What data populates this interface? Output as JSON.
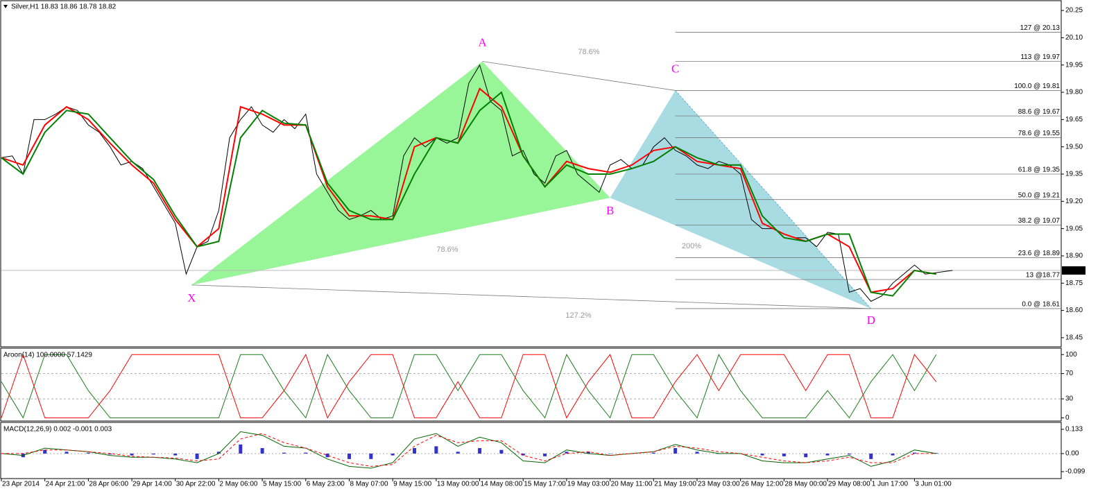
{
  "chart_data": [
    {
      "type": "line",
      "title": "Silver,H1 18.83 18.86 18.78 18.82",
      "xlim": [
        0,
        390
      ],
      "ylim": [
        18.4,
        20.3
      ],
      "yticks": [
        {
          "value": 20.25,
          "label": "20.25"
        },
        {
          "value": 20.1,
          "label": "20.10"
        },
        19.95,
        {
          "value": 19.8,
          "label": "19.80"
        },
        19.65,
        {
          "value": 19.5,
          "label": "19.50"
        },
        19.35,
        {
          "value": 19.2,
          "label": "19.20"
        },
        19.05,
        {
          "value": 18.9,
          "label": "18.90"
        },
        18.75,
        {
          "value": 18.6,
          "label": "18.60"
        },
        18.45
      ],
      "last_price": {
        "value": 18.82,
        "label": "18.82"
      },
      "series": [
        {
          "color": "#000000",
          "x": [
            0,
            4,
            8,
            12,
            16,
            20,
            24,
            28,
            32,
            36,
            40,
            44,
            48,
            52,
            56,
            60,
            64,
            68,
            72,
            76,
            80,
            84,
            88,
            92,
            96,
            100,
            104,
            108,
            112,
            116,
            120,
            124,
            128,
            132,
            136,
            140,
            144,
            148,
            152,
            156,
            160,
            164,
            168,
            172,
            176,
            180,
            184,
            188,
            192,
            196,
            200,
            204,
            208,
            212,
            216,
            220,
            224,
            228,
            232,
            236,
            240,
            244,
            248,
            252,
            256,
            260,
            264,
            268,
            272,
            276,
            280,
            284,
            288,
            292,
            296,
            300,
            304,
            308,
            312,
            316,
            320,
            324,
            328,
            332,
            336,
            340,
            350
          ],
          "values": [
            19.44,
            19.45,
            19.35,
            19.65,
            19.65,
            19.68,
            19.72,
            19.7,
            19.62,
            19.58,
            19.5,
            19.4,
            19.42,
            19.38,
            19.28,
            19.18,
            19.08,
            18.8,
            18.95,
            18.98,
            19.15,
            19.55,
            19.65,
            19.72,
            19.62,
            19.58,
            19.65,
            19.6,
            19.68,
            19.35,
            19.25,
            19.15,
            19.1,
            19.12,
            19.15,
            19.1,
            19.12,
            19.45,
            19.55,
            19.5,
            19.55,
            19.52,
            19.55,
            19.85,
            19.95,
            19.75,
            19.7,
            19.45,
            19.48,
            19.35,
            19.3,
            19.45,
            19.48,
            19.35,
            19.3,
            19.25,
            19.4,
            19.43,
            19.38,
            19.4,
            19.5,
            19.55,
            19.48,
            19.45,
            19.4,
            19.38,
            19.42,
            19.4,
            19.35,
            19.1,
            19.05,
            19.05,
            19.02,
            19.0,
            19.0,
            18.95,
            19.03,
            19.02,
            18.7,
            18.72,
            18.65,
            18.68,
            18.75,
            18.8,
            18.85,
            18.8,
            18.82
          ]
        },
        {
          "color": "#ff0000",
          "x": [
            0,
            8,
            16,
            24,
            32,
            40,
            48,
            56,
            64,
            72,
            80,
            88,
            96,
            104,
            112,
            120,
            128,
            136,
            144,
            152,
            160,
            168,
            176,
            184,
            192,
            200,
            208,
            216,
            224,
            232,
            240,
            248,
            256,
            264,
            272,
            280,
            288,
            296,
            304,
            312,
            320,
            328,
            336,
            344
          ],
          "values": [
            19.44,
            19.4,
            19.62,
            19.72,
            19.65,
            19.52,
            19.4,
            19.3,
            19.1,
            18.95,
            19.05,
            19.72,
            19.68,
            19.62,
            19.62,
            19.28,
            19.12,
            19.12,
            19.1,
            19.5,
            19.55,
            19.52,
            19.82,
            19.72,
            19.45,
            19.28,
            19.42,
            19.38,
            19.36,
            19.4,
            19.48,
            19.5,
            19.42,
            19.4,
            19.38,
            19.08,
            19.02,
            18.98,
            19.02,
            18.95,
            18.7,
            18.72,
            18.82,
            18.8
          ]
        },
        {
          "color": "#008000",
          "x": [
            0,
            8,
            16,
            24,
            32,
            40,
            48,
            56,
            64,
            72,
            80,
            88,
            96,
            104,
            112,
            120,
            128,
            136,
            144,
            152,
            160,
            168,
            176,
            184,
            192,
            200,
            208,
            216,
            224,
            232,
            240,
            248,
            256,
            264,
            272,
            280,
            288,
            296,
            304,
            312,
            320,
            328,
            336,
            344
          ],
          "values": [
            19.44,
            19.35,
            19.58,
            19.7,
            19.68,
            19.55,
            19.42,
            19.32,
            19.12,
            18.95,
            18.98,
            19.55,
            19.7,
            19.63,
            19.62,
            19.3,
            19.15,
            19.1,
            19.1,
            19.35,
            19.55,
            19.52,
            19.7,
            19.8,
            19.45,
            19.28,
            19.4,
            19.35,
            19.35,
            19.38,
            19.42,
            19.5,
            19.44,
            19.4,
            19.4,
            19.12,
            19.0,
            18.98,
            19.02,
            19.02,
            18.7,
            18.68,
            18.82,
            18.8
          ]
        }
      ],
      "pattern": {
        "points": [
          {
            "label": "X",
            "x": 70,
            "y": 18.74
          },
          {
            "label": "A",
            "x": 177,
            "y": 19.97
          },
          {
            "label": "B",
            "x": 224,
            "y": 19.22
          },
          {
            "label": "C",
            "x": 248,
            "y": 19.81
          },
          {
            "label": "D",
            "x": 320,
            "y": 18.61
          }
        ],
        "ratios": [
          "78.6%",
          "78.6%",
          "200%",
          "127.2%"
        ]
      },
      "fib_levels": [
        {
          "value": 20.13,
          "label": "127 @ 20.13"
        },
        {
          "value": 19.97,
          "label": "113 @ 19.97"
        },
        {
          "value": 19.81,
          "label": "100.0 @ 19.81"
        },
        {
          "value": 19.67,
          "label": "88.6 @ 19.67"
        },
        {
          "value": 19.55,
          "label": "78.6 @ 19.55"
        },
        {
          "value": 19.35,
          "label": "61.8 @ 19.35"
        },
        {
          "value": 19.21,
          "label": "50.0 @ 19.21"
        },
        {
          "value": 19.07,
          "label": "38.2 @ 19.07"
        },
        {
          "value": 18.89,
          "label": "23.6 @ 18.89"
        },
        {
          "value": 18.77,
          "label": "13 @18.77"
        },
        {
          "value": 18.61,
          "label": "0.0 @ 18.61"
        }
      ]
    },
    {
      "type": "line",
      "title": "Aroon(14) 100.0000 57.1429",
      "xlim": [
        0,
        390
      ],
      "ylim": [
        -5,
        109
      ],
      "yticks": [
        100,
        70,
        30,
        0
      ],
      "x": [
        0,
        8,
        16,
        24,
        32,
        40,
        48,
        56,
        64,
        72,
        80,
        88,
        96,
        104,
        112,
        120,
        128,
        136,
        144,
        152,
        160,
        168,
        176,
        184,
        192,
        200,
        208,
        216,
        224,
        232,
        240,
        248,
        256,
        264,
        272,
        280,
        288,
        296,
        304,
        312,
        320,
        328,
        336,
        344
      ],
      "series": [
        {
          "color": "#1a7a1a",
          "values": [
            57,
            0,
            100,
            100,
            43,
            0,
            0,
            0,
            0,
            0,
            0,
            100,
            100,
            43,
            0,
            100,
            43,
            0,
            0,
            100,
            100,
            43,
            100,
            100,
            43,
            0,
            100,
            43,
            0,
            100,
            100,
            43,
            0,
            100,
            43,
            0,
            0,
            0,
            43,
            0,
            57,
            100,
            43,
            100
          ]
        },
        {
          "color": "#ff0000",
          "values": [
            0,
            100,
            0,
            0,
            0,
            43,
            100,
            100,
            100,
            100,
            100,
            0,
            0,
            43,
            100,
            0,
            57,
            100,
            100,
            0,
            0,
            57,
            0,
            0,
            100,
            100,
            0,
            57,
            100,
            0,
            0,
            57,
            100,
            43,
            100,
            100,
            100,
            43,
            100,
            100,
            0,
            0,
            100,
            57
          ]
        }
      ]
    },
    {
      "type": "macd",
      "title": "MACD(12,26,9) 0.002 -0.001 0.003",
      "xlim": [
        0,
        390
      ],
      "ylim": [
        -0.137,
        0.167
      ],
      "yticks": [
        0.133,
        {
          "value": 0,
          "label": "0.00"
        },
        -0.099
      ],
      "xticks": [
        {
          "value": 0,
          "label": "23 Apr 2014"
        },
        {
          "value": 16,
          "label": "24 Apr 21:00"
        },
        {
          "value": 32,
          "label": "28 Apr 06:00"
        },
        {
          "value": 48,
          "label": "29 Apr 14:00"
        },
        {
          "value": 64,
          "label": "30 Apr 22:00"
        },
        {
          "value": 80,
          "label": "2 May 06:00"
        },
        {
          "value": 96,
          "label": "5 May 15:00"
        },
        {
          "value": 112,
          "label": "6 May 23:00"
        },
        {
          "value": 128,
          "label": "8 May 07:00"
        },
        {
          "value": 144,
          "label": "9 May 15:00"
        },
        {
          "value": 160,
          "label": "13 May 00:00"
        },
        {
          "value": 176,
          "label": "14 May 08:00"
        },
        {
          "value": 192,
          "label": "15 May 17:00"
        },
        {
          "value": 208,
          "label": "19 May 03:00"
        },
        {
          "value": 224,
          "label": "20 May 11:00"
        },
        {
          "value": 240,
          "label": "21 May 19:00"
        },
        {
          "value": 256,
          "label": "23 May 03:00"
        },
        {
          "value": 272,
          "label": "26 May 12:00"
        },
        {
          "value": 288,
          "label": "28 May 00:00"
        },
        {
          "value": 304,
          "label": "29 May 08:00"
        },
        {
          "value": 320,
          "label": "1 Jun 17:00"
        },
        {
          "value": 336,
          "label": "3 Jun 01:00"
        }
      ],
      "x": [
        0,
        8,
        16,
        24,
        32,
        40,
        48,
        56,
        64,
        72,
        80,
        88,
        96,
        104,
        112,
        120,
        128,
        136,
        144,
        152,
        160,
        168,
        176,
        184,
        192,
        200,
        208,
        216,
        224,
        232,
        240,
        248,
        256,
        264,
        272,
        280,
        288,
        296,
        304,
        312,
        320,
        328,
        336,
        344
      ],
      "histogram": {
        "color": "#3333cc",
        "values": [
          0,
          -0.02,
          0.02,
          0.01,
          0.005,
          -0.005,
          -0.01,
          -0.005,
          -0.01,
          -0.03,
          0.01,
          0.05,
          0.03,
          0.005,
          0.005,
          -0.02,
          -0.03,
          -0.03,
          -0.01,
          0.03,
          0.04,
          0.01,
          0.03,
          0.02,
          -0.01,
          -0.015,
          0.01,
          0.01,
          0,
          0,
          0.005,
          0.03,
          0.01,
          0,
          0,
          -0.01,
          -0.015,
          -0.02,
          -0.01,
          -0.005,
          -0.03,
          -0.01,
          0.005,
          0.003
        ]
      },
      "series": [
        {
          "color": "#006400",
          "values": [
            0,
            -0.01,
            0.03,
            0.02,
            0.01,
            -0.01,
            -0.02,
            -0.02,
            -0.03,
            -0.05,
            0,
            0.12,
            0.1,
            0.04,
            0.03,
            -0.03,
            -0.07,
            -0.08,
            -0.05,
            0.08,
            0.11,
            0.04,
            0.09,
            0.06,
            -0.04,
            -0.05,
            0.02,
            0,
            -0.01,
            0,
            0.01,
            0.05,
            0.02,
            0,
            0,
            -0.04,
            -0.05,
            -0.05,
            -0.03,
            -0.01,
            -0.07,
            -0.04,
            0.02,
            0
          ]
        },
        {
          "color": "#ff0000",
          "dashed": true,
          "values": [
            0,
            0,
            0.02,
            0.02,
            0.01,
            0,
            -0.015,
            -0.02,
            -0.025,
            -0.04,
            -0.03,
            0.08,
            0.11,
            0.06,
            0.03,
            -0.01,
            -0.05,
            -0.07,
            -0.06,
            0.04,
            0.1,
            0.06,
            0.07,
            0.07,
            -0.01,
            -0.04,
            0,
            0.01,
            -0.01,
            0,
            0.01,
            0.04,
            0.03,
            0.01,
            0,
            -0.02,
            -0.04,
            -0.05,
            -0.04,
            -0.02,
            -0.05,
            -0.05,
            0,
            0
          ]
        }
      ]
    }
  ]
}
